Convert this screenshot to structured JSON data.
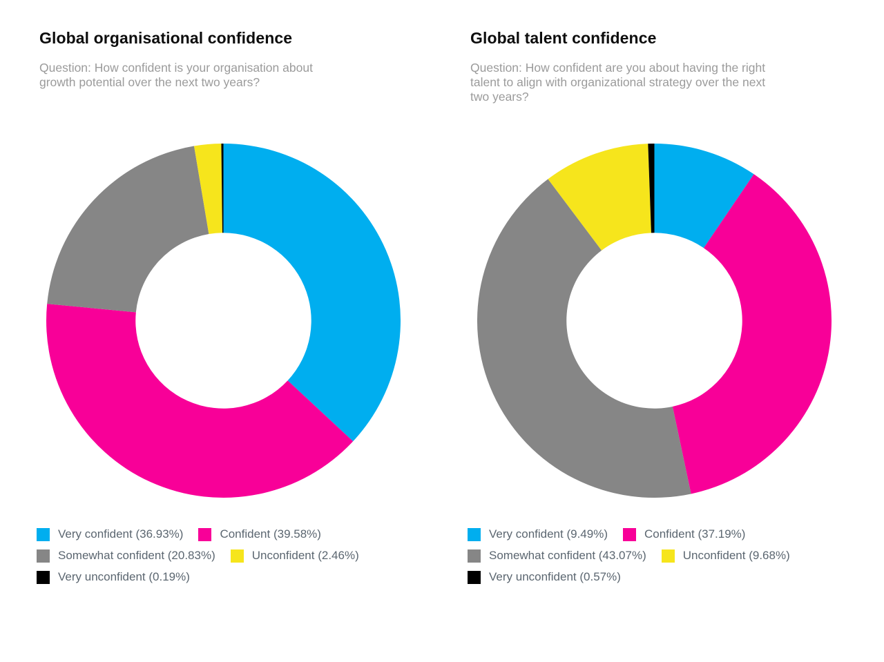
{
  "palette": {
    "very_confident": "#00AEEF",
    "confident": "#F80098",
    "somewhat_confident": "#868686",
    "unconfident": "#F6E51C",
    "very_unconfident": "#000000",
    "title_text": "#0d0d0d",
    "question_text": "#9b9b9b",
    "legend_text": "#5b6670",
    "background": "#ffffff"
  },
  "chart_data": [
    {
      "type": "donut",
      "title": "Global organisational confidence",
      "subtitle": "Question: How confident is your organisation about\ngrowth potential over the next two years?",
      "labels": [
        "Very confident",
        "Confident",
        "Somewhat confident",
        "Unconfident",
        "Very unconfident"
      ],
      "values": [
        36.93,
        39.58,
        20.83,
        2.46,
        0.19
      ],
      "colors": [
        "#00AEEF",
        "#F80098",
        "#868686",
        "#F6E51C",
        "#000000"
      ],
      "legend_labels": [
        "Very confident (36.93%)",
        "Confident (39.58%)",
        "Somewhat confident (20.83%)",
        "Unconfident (2.46%)",
        "Very unconfident (0.19%)"
      ],
      "start_angle_deg": 0,
      "direction": "clockwise",
      "inner_radius_ratio": 0.496,
      "legend_position": "bottom"
    },
    {
      "type": "donut",
      "title": "Global talent confidence",
      "subtitle": "Question: How confident are you about having the right\ntalent to align with organizational strategy over the next\ntwo years?",
      "labels": [
        "Very confident",
        "Confident",
        "Somewhat confident",
        "Unconfident",
        "Very unconfident"
      ],
      "values": [
        9.49,
        37.19,
        43.07,
        9.68,
        0.57
      ],
      "colors": [
        "#00AEEF",
        "#F80098",
        "#868686",
        "#F6E51C",
        "#000000"
      ],
      "legend_labels": [
        "Very confident (9.49%)",
        "Confident (37.19%)",
        "Somewhat confident (43.07%)",
        "Unconfident (9.68%)",
        "Very unconfident (0.57%)"
      ],
      "start_angle_deg": 0,
      "direction": "clockwise",
      "inner_radius_ratio": 0.496,
      "legend_position": "bottom"
    }
  ]
}
